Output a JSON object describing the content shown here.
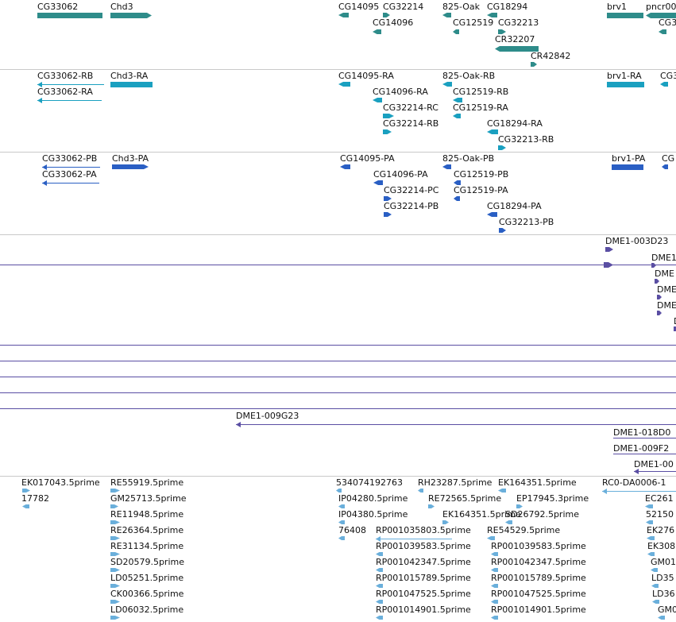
{
  "colors": {
    "gene": "#2e8c8a",
    "transcript": "#1aa0c0",
    "protein": "#2a5fc4",
    "bac": "#5a4ea3",
    "est": "#6aafdb",
    "separator": "#c9c9c9"
  },
  "genes": [
    {
      "label": "CG33062"
    },
    {
      "label": "Chd3"
    },
    {
      "label": "CG14095"
    },
    {
      "label": "CG32214"
    },
    {
      "label": "825-Oak"
    },
    {
      "label": "CG18294"
    },
    {
      "label": "brv1"
    },
    {
      "label": "pncr00"
    },
    {
      "label": "CG14096"
    },
    {
      "label": "CG12519"
    },
    {
      "label": "CG32213"
    },
    {
      "label": "CG3"
    },
    {
      "label": "CR32207"
    },
    {
      "label": "CR42842"
    }
  ],
  "transcripts": [
    {
      "label": "CG33062-RB"
    },
    {
      "label": "Chd3-RA"
    },
    {
      "label": "CG14095-RA"
    },
    {
      "label": "825-Oak-RB"
    },
    {
      "label": "brv1-RA"
    },
    {
      "label": "CG3"
    },
    {
      "label": "CG33062-RA"
    },
    {
      "label": "CG14096-RA"
    },
    {
      "label": "CG12519-RB"
    },
    {
      "label": "CG32214-RC"
    },
    {
      "label": "CG12519-RA"
    },
    {
      "label": "CG32214-RB"
    },
    {
      "label": "CG18294-RA"
    },
    {
      "label": "CG32213-RB"
    }
  ],
  "proteins": [
    {
      "label": "CG33062-PB"
    },
    {
      "label": "Chd3-PA"
    },
    {
      "label": "CG14095-PA"
    },
    {
      "label": "825-Oak-PB"
    },
    {
      "label": "brv1-PA"
    },
    {
      "label": "CG"
    },
    {
      "label": "CG33062-PA"
    },
    {
      "label": "CG14096-PA"
    },
    {
      "label": "CG12519-PB"
    },
    {
      "label": "CG32214-PC"
    },
    {
      "label": "CG12519-PA"
    },
    {
      "label": "CG32214-PB"
    },
    {
      "label": "CG18294-PA"
    },
    {
      "label": "CG32213-PB"
    }
  ],
  "bacs": [
    {
      "label": "DME1-003D23"
    },
    {
      "label": "DME1"
    },
    {
      "label": "DME"
    },
    {
      "label": "DME"
    },
    {
      "label": "DME"
    },
    {
      "label": "D"
    },
    {
      "label": "DME1-009G23"
    },
    {
      "label": "DME1-018D0"
    },
    {
      "label": "DME1-009F2"
    },
    {
      "label": "DME1-00"
    }
  ],
  "ests": [
    {
      "label": "EK017043.5prime"
    },
    {
      "label": "RE55919.5prime"
    },
    {
      "label": "534074192763"
    },
    {
      "label": "RH23287.5prime"
    },
    {
      "label": "EK164351.5prime"
    },
    {
      "label": "RC0-DA0006-1"
    },
    {
      "label": "17782"
    },
    {
      "label": "GM25713.5prime"
    },
    {
      "label": "IP04280.5prime"
    },
    {
      "label": "RE72565.5prime"
    },
    {
      "label": "EP17945.3prime"
    },
    {
      "label": "EC261"
    },
    {
      "label": "RE11948.5prime"
    },
    {
      "label": "IP04380.5prime"
    },
    {
      "label": "EK164351.5prime"
    },
    {
      "label": "SD26792.5prime"
    },
    {
      "label": "52150"
    },
    {
      "label": "RE26364.5prime"
    },
    {
      "label": "76408"
    },
    {
      "label": "RP001035803.5prime"
    },
    {
      "label": "RE54529.5prime"
    },
    {
      "label": "EK276"
    },
    {
      "label": "RE31134.5prime"
    },
    {
      "label": "RP001039583.5prime"
    },
    {
      "label": "RP001039583.5prime"
    },
    {
      "label": "EK308"
    },
    {
      "label": "SD20579.5prime"
    },
    {
      "label": "RP001042347.5prime"
    },
    {
      "label": "RP001042347.5prime"
    },
    {
      "label": "GM01"
    },
    {
      "label": "LD05251.5prime"
    },
    {
      "label": "RP001015789.5prime"
    },
    {
      "label": "RP001015789.5prime"
    },
    {
      "label": "LD35"
    },
    {
      "label": "CK00366.5prime"
    },
    {
      "label": "RP001047525.5prime"
    },
    {
      "label": "RP001047525.5prime"
    },
    {
      "label": "LD36"
    },
    {
      "label": "LD06032.5prime"
    },
    {
      "label": "RP001014901.5prime"
    },
    {
      "label": "RP001014901.5prime"
    },
    {
      "label": "GM0"
    }
  ]
}
